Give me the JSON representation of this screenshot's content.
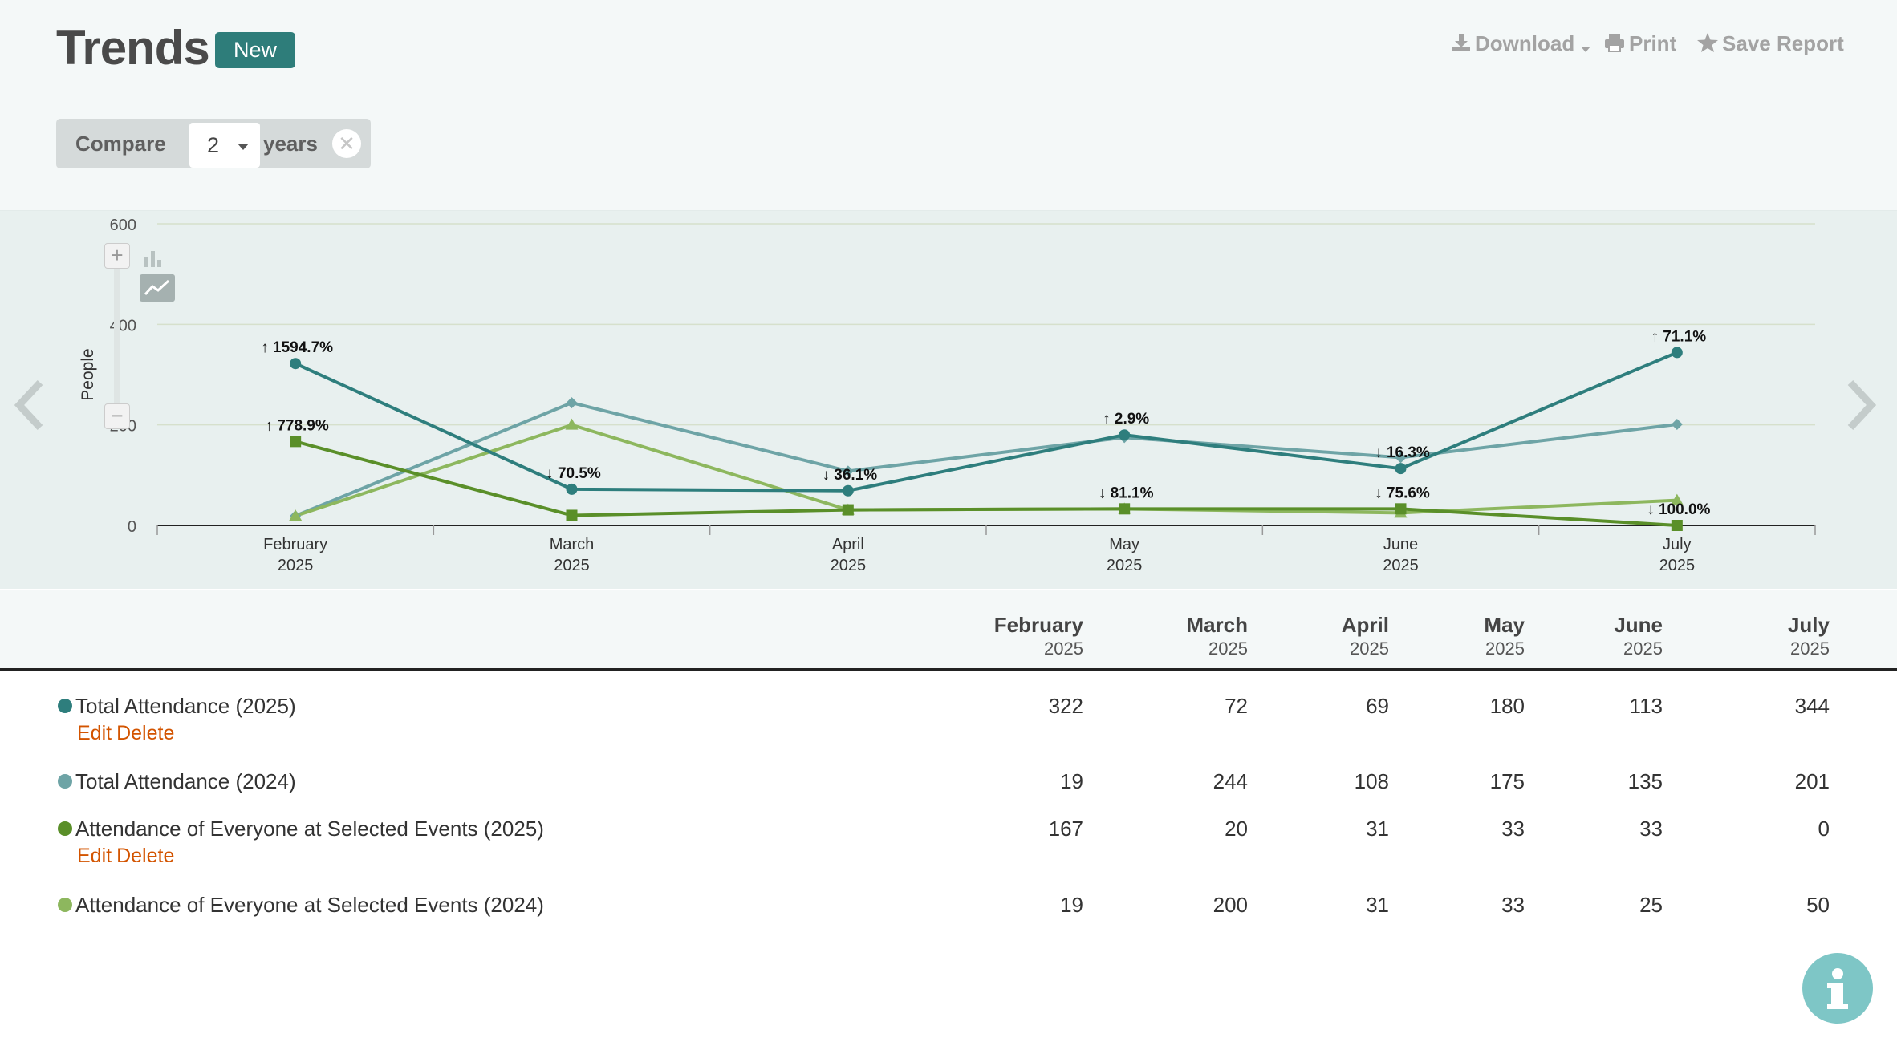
{
  "header": {
    "title": "Trends",
    "badge": "New",
    "actions": {
      "download": "Download",
      "print": "Print",
      "save_report": "Save Report"
    }
  },
  "compare": {
    "label": "Compare",
    "years_value": "2",
    "unit": "years"
  },
  "colors": {
    "total_2025": "#2e7e7d",
    "total_2024": "#6ea4a6",
    "everyone_2025": "#5a8f29",
    "everyone_2024": "#8db75e",
    "action_link": "#d35400",
    "brand": "#2e7d7a"
  },
  "chart_data": {
    "type": "line",
    "ylabel": "People",
    "ylim": [
      0,
      600
    ],
    "yticks": [
      "0",
      "200",
      "400",
      "600"
    ],
    "categories": [
      {
        "month": "February",
        "year": "2025"
      },
      {
        "month": "March",
        "year": "2025"
      },
      {
        "month": "April",
        "year": "2025"
      },
      {
        "month": "May",
        "year": "2025"
      },
      {
        "month": "June",
        "year": "2025"
      },
      {
        "month": "July",
        "year": "2025"
      }
    ],
    "grid": true,
    "series": [
      {
        "name": "Total Attendance (2025)",
        "values": [
          322,
          72,
          69,
          180,
          113,
          344
        ],
        "color": "#2e7e7d",
        "marker": "circle"
      },
      {
        "name": "Total Attendance (2024)",
        "values": [
          19,
          244,
          108,
          175,
          135,
          201
        ],
        "color": "#6ea4a6",
        "marker": "diamond"
      },
      {
        "name": "Attendance of Everyone at Selected Events (2025)",
        "values": [
          167,
          20,
          31,
          33,
          33,
          0
        ],
        "color": "#5a8f29",
        "marker": "square"
      },
      {
        "name": "Attendance of Everyone at Selected Events (2024)",
        "values": [
          19,
          200,
          31,
          33,
          25,
          50
        ],
        "color": "#8db75e",
        "marker": "triangle"
      }
    ],
    "annotations": [
      {
        "text": "↑ 1594.7%",
        "series": 0,
        "index": 0
      },
      {
        "text": "↓ 70.5%",
        "series": 0,
        "index": 1
      },
      {
        "text": "↓ 36.1%",
        "series": 0,
        "index": 2
      },
      {
        "text": "↑ 2.9%",
        "series": 0,
        "index": 3
      },
      {
        "text": "↓ 16.3%",
        "series": 0,
        "index": 4
      },
      {
        "text": "↑ 71.1%",
        "series": 0,
        "index": 5
      },
      {
        "text": "↑ 778.9%",
        "series": 2,
        "index": 0
      },
      {
        "text": "↓ 81.1%",
        "series": 2,
        "index": 3
      },
      {
        "text": "↓ 75.6%",
        "series": 2,
        "index": 4
      },
      {
        "text": "↓ 100.0%",
        "series": 2,
        "index": 5
      }
    ]
  },
  "table": {
    "columns": [
      {
        "month": "February",
        "year": "2025"
      },
      {
        "month": "March",
        "year": "2025"
      },
      {
        "month": "April",
        "year": "2025"
      },
      {
        "month": "May",
        "year": "2025"
      },
      {
        "month": "June",
        "year": "2025"
      },
      {
        "month": "July",
        "year": "2025"
      }
    ],
    "rows": [
      {
        "label": "Total Attendance (2025)",
        "values": [
          "322",
          "72",
          "69",
          "180",
          "113",
          "344"
        ],
        "edit": "Edit",
        "delete": "Delete"
      },
      {
        "label": "Total Attendance (2024)",
        "values": [
          "19",
          "244",
          "108",
          "175",
          "135",
          "201"
        ]
      },
      {
        "label": "Attendance of Everyone at Selected Events (2025)",
        "values": [
          "167",
          "20",
          "31",
          "33",
          "33",
          "0"
        ],
        "edit": "Edit",
        "delete": "Delete"
      },
      {
        "label": "Attendance of Everyone at Selected Events (2024)",
        "values": [
          "19",
          "200",
          "31",
          "33",
          "25",
          "50"
        ]
      }
    ]
  },
  "icons": {
    "download": "download-icon",
    "print": "printer-icon",
    "save": "star-icon",
    "clear": "close-icon",
    "info": "info-icon",
    "prev": "chevron-left-icon",
    "next": "chevron-right-icon"
  }
}
